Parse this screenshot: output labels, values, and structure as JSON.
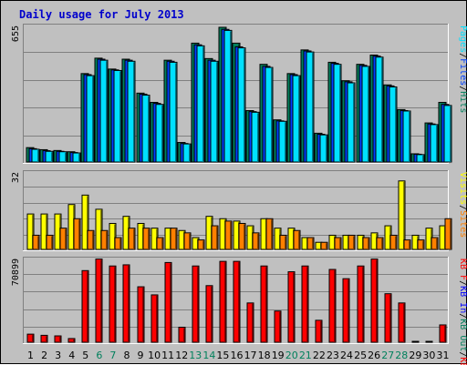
{
  "page": {
    "title": "Daily usage for July 2013"
  },
  "colors": {
    "hits": "#00805c",
    "files": "#0040ff",
    "pages": "#00e0ff",
    "visits": "#ffff00",
    "sites": "#ff8000",
    "kbin": "#0000ff",
    "kbout": "#00805c",
    "kbf": "#ff0000",
    "weekday_label": "#000000",
    "weekend_label": "#00805c"
  },
  "chart_data": [
    {
      "type": "bar",
      "panel": "hits-files-pages",
      "ymax_label": "655",
      "legend": [
        {
          "label": "Pages",
          "color": "#00e0ff"
        },
        {
          "label": "/",
          "color": "#000000"
        },
        {
          "label": "Files",
          "color": "#0040ff"
        },
        {
          "label": "/",
          "color": "#000000"
        },
        {
          "label": "Hits",
          "color": "#00805c"
        }
      ],
      "ylim": [
        0,
        655
      ],
      "categories": [
        "1",
        "2",
        "3",
        "4",
        "5",
        "6",
        "7",
        "8",
        "9",
        "10",
        "11",
        "12",
        "13",
        "14",
        "15",
        "16",
        "17",
        "18",
        "19",
        "20",
        "21",
        "22",
        "23",
        "24",
        "25",
        "26",
        "27",
        "28",
        "29",
        "30",
        "31"
      ],
      "series": [
        {
          "name": "Hits",
          "values": [
            70,
            60,
            56,
            50,
            430,
            505,
            452,
            500,
            335,
            290,
            495,
            95,
            578,
            503,
            655,
            578,
            250,
            475,
            205,
            430,
            545,
            140,
            485,
            395,
            475,
            520,
            375,
            255,
            40,
            190,
            290
          ]
        },
        {
          "name": "Files",
          "values": [
            65,
            55,
            52,
            46,
            425,
            500,
            448,
            495,
            330,
            285,
            490,
            90,
            570,
            495,
            645,
            560,
            245,
            465,
            200,
            425,
            540,
            135,
            480,
            390,
            470,
            515,
            370,
            250,
            38,
            185,
            280
          ]
        },
        {
          "name": "Pages",
          "values": [
            62,
            52,
            50,
            44,
            420,
            495,
            445,
            490,
            325,
            280,
            485,
            88,
            565,
            490,
            640,
            555,
            242,
            460,
            198,
            420,
            535,
            132,
            475,
            385,
            465,
            510,
            365,
            248,
            36,
            182,
            275
          ]
        }
      ]
    },
    {
      "type": "bar",
      "panel": "visits-sites",
      "ymax_label": "32",
      "legend": [
        {
          "label": "Visits",
          "color": "#ffff00"
        },
        {
          "label": "/",
          "color": "#000000"
        },
        {
          "label": "Sites",
          "color": "#ff8000"
        }
      ],
      "ylim": [
        0,
        32
      ],
      "categories": [
        "1",
        "2",
        "3",
        "4",
        "5",
        "6",
        "7",
        "8",
        "9",
        "10",
        "11",
        "12",
        "13",
        "14",
        "15",
        "16",
        "17",
        "18",
        "19",
        "20",
        "21",
        "22",
        "23",
        "24",
        "25",
        "26",
        "27",
        "28",
        "29",
        "30",
        "31"
      ],
      "series": [
        {
          "name": "Visits",
          "values": [
            15,
            15,
            15,
            19,
            23,
            17,
            11,
            14,
            11,
            9,
            9,
            8,
            5,
            14,
            13,
            12,
            10,
            13,
            9,
            9,
            5,
            3,
            6,
            6,
            6,
            7,
            10,
            29,
            6,
            9,
            10
          ]
        },
        {
          "name": "Sites",
          "values": [
            6,
            6,
            9,
            13,
            8,
            8,
            5,
            9,
            9,
            5,
            9,
            7,
            4,
            10,
            12,
            11,
            7,
            13,
            6,
            8,
            5,
            3,
            5,
            6,
            5,
            5,
            6,
            4,
            4,
            5,
            13
          ]
        }
      ]
    },
    {
      "type": "bar",
      "panel": "kb",
      "ymax_label": "70899",
      "legend": [
        {
          "label": "KB F",
          "color": "#ff0000"
        },
        {
          "label": "/",
          "color": "#000000"
        },
        {
          "label": "KB In",
          "color": "#0000ff"
        },
        {
          "label": "/",
          "color": "#000000"
        },
        {
          "label": "KB Out",
          "color": "#00805c"
        },
        {
          "label": "/",
          "color": "#000000"
        },
        {
          "label": "KB F",
          "color": "#ff0000"
        }
      ],
      "ylim": [
        0,
        70899
      ],
      "categories": [
        "1",
        "2",
        "3",
        "4",
        "5",
        "6",
        "7",
        "8",
        "9",
        "10",
        "11",
        "12",
        "13",
        "14",
        "15",
        "16",
        "17",
        "18",
        "19",
        "20",
        "21",
        "22",
        "23",
        "24",
        "25",
        "26",
        "27",
        "28",
        "29",
        "30",
        "31"
      ],
      "series": [
        {
          "name": "KB F",
          "values": [
            7000,
            6000,
            5500,
            3200,
            62000,
            72000,
            66000,
            67000,
            48000,
            41000,
            69000,
            13000,
            66000,
            49000,
            70000,
            70000,
            34000,
            66000,
            27000,
            61000,
            66000,
            19000,
            63000,
            55000,
            66000,
            72000,
            42000,
            34000,
            300,
            400,
            15000
          ]
        }
      ]
    }
  ],
  "x_axis": {
    "labels": [
      "1",
      "2",
      "3",
      "4",
      "5",
      "6",
      "7",
      "8",
      "9",
      "10",
      "11",
      "12",
      "13",
      "14",
      "15",
      "16",
      "17",
      "18",
      "19",
      "20",
      "21",
      "22",
      "23",
      "24",
      "25",
      "26",
      "27",
      "28",
      "29",
      "30",
      "31"
    ],
    "weekend": [
      6,
      7,
      13,
      14,
      20,
      21,
      27,
      28
    ]
  }
}
